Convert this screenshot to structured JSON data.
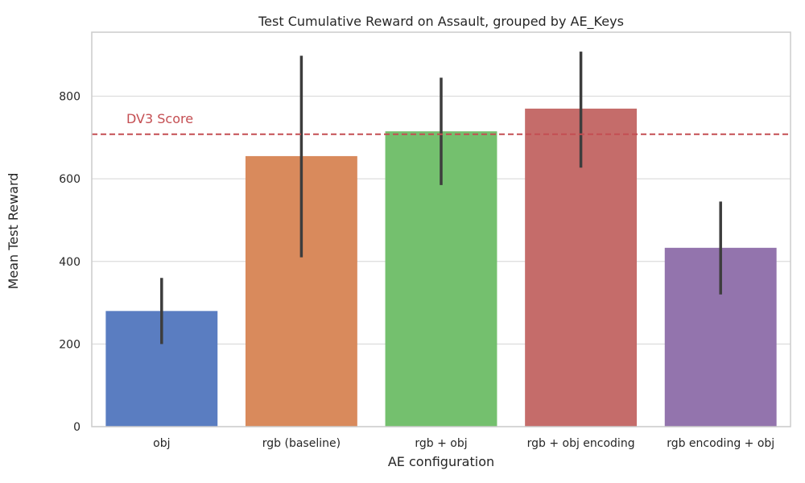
{
  "chart_data": {
    "type": "bar",
    "title": "Test Cumulative Reward on Assault, grouped by AE_Keys",
    "xlabel": "AE configuration",
    "ylabel": "Mean Test Reward",
    "categories": [
      "obj",
      "rgb (baseline)",
      "rgb + obj",
      "rgb + obj encoding",
      "rgb encoding + obj"
    ],
    "values": [
      280,
      655,
      715,
      770,
      433
    ],
    "error_low": [
      200,
      410,
      585,
      627,
      320
    ],
    "error_high": [
      360,
      898,
      845,
      908,
      545
    ],
    "colors": [
      "#5a7dc1",
      "#d98a5c",
      "#74c06e",
      "#c56c6a",
      "#9374ad"
    ],
    "ylim": [
      0,
      955
    ],
    "yticks": [
      0,
      200,
      400,
      600,
      800
    ],
    "grid": true,
    "reference_line": {
      "value": 708,
      "label": "DV3 Score",
      "color": "#c44e52"
    }
  }
}
